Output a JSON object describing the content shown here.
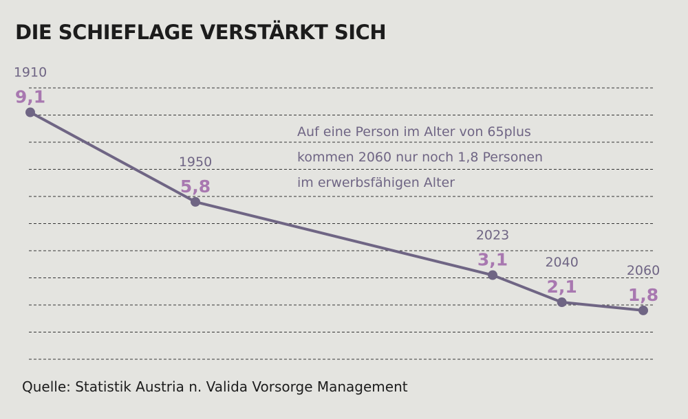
{
  "chart_data": {
    "type": "line",
    "title": "DIE SCHIEFLAGE VERSTÄRKT SICH",
    "x": [
      "1910",
      "1950",
      "2023",
      "2040",
      "2060"
    ],
    "values": [
      9.1,
      5.8,
      3.1,
      2.1,
      1.8
    ],
    "value_labels": [
      "9,1",
      "5,8",
      "3,1",
      "2,1",
      "1,8"
    ],
    "ylim": [
      0,
      10
    ],
    "grid": true,
    "annotation": [
      "Auf eine Person im Alter von 65plus",
      "kommen 2060 nur noch 1,8 Personen",
      "im  erwerbsfähigen Alter"
    ]
  },
  "source": "Quelle: Statistik Austria n. Valida Vorsorge Management",
  "colors": {
    "background": "#e4e4e0",
    "line": "#6f6584",
    "value_label": "#a878b0",
    "year_label": "#6f6584",
    "grid": "#333333",
    "title": "#1c1c1c"
  }
}
